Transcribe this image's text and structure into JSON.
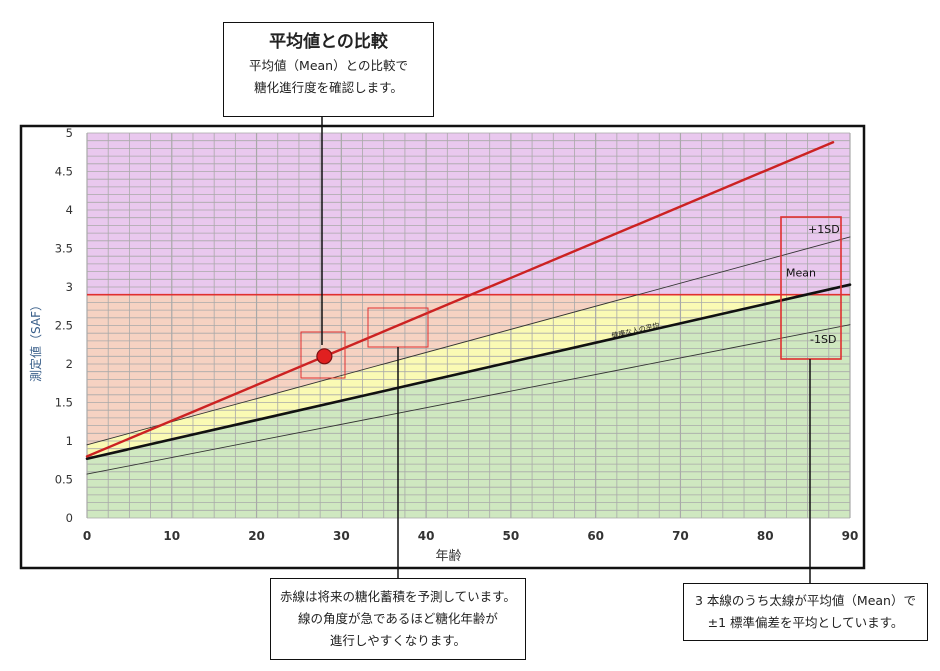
{
  "chart_data": {
    "type": "line",
    "xlabel": "年齢",
    "ylabel": "測定値（SAF）",
    "xlim": [
      0,
      90
    ],
    "ylim": [
      0,
      5
    ],
    "xticks": [
      0,
      10,
      20,
      30,
      40,
      50,
      60,
      70,
      80,
      90
    ],
    "yticks": [
      0,
      0.5,
      1,
      1.5,
      2,
      2.5,
      3,
      3.5,
      4,
      4.5,
      5
    ],
    "xtick_labels": [
      "0",
      "10",
      "20",
      "30",
      "40",
      "50",
      "60",
      "70",
      "80",
      "90"
    ],
    "ytick_labels": [
      "0",
      "0.5",
      "1",
      "1.5",
      "2",
      "2.5",
      "3",
      "3.5",
      "4",
      "4.5",
      "5"
    ],
    "grid": true,
    "threshold": {
      "y": 2.9,
      "color": "#e03030"
    },
    "regions": [
      {
        "from": 2.9,
        "to": 5,
        "color": "#e9c8ee"
      },
      {
        "from": 0,
        "to": 2.9,
        "color": "#cfe8c0"
      }
    ],
    "series": [
      {
        "name": "+1SD",
        "x": [
          0,
          90
        ],
        "y": [
          0.95,
          3.65
        ],
        "color": "#333333",
        "width": 0.9
      },
      {
        "name": "Mean",
        "x": [
          0,
          90
        ],
        "y": [
          0.77,
          3.03
        ],
        "color": "#111111",
        "width": 2.6
      },
      {
        "name": "-1SD",
        "x": [
          0,
          90
        ],
        "y": [
          0.57,
          2.51
        ],
        "color": "#333333",
        "width": 0.9
      },
      {
        "name": "",
        "x": [
          0,
          88
        ],
        "y": [
          0.8,
          4.88
        ],
        "color": "#cc2222",
        "width": 2.4
      }
    ],
    "point": {
      "x": 28,
      "y": 2.1,
      "color": "#e02020"
    },
    "series_labels": [
      "+1SD",
      "Mean",
      "-1SD"
    ],
    "mean_line_annotation": "健康な人の平均"
  },
  "callouts": {
    "top": {
      "title": "平均値との比較",
      "lines": [
        "平均値（Mean）との比較で",
        "糖化進行度を確認します。"
      ]
    },
    "bottom_center": {
      "lines": [
        "赤線は将来の糖化蓄積を予測しています。",
        "線の角度が急であるほど糖化年齢が",
        "進行しやすくなります。"
      ]
    },
    "bottom_right": {
      "lines": [
        "3 本線のうち太線が平均値（Mean）で",
        "±1 標準偏差を平均としています。"
      ]
    }
  },
  "colors": {
    "highlight_box": "#e03030",
    "frame": "#111111",
    "grid": "#a9a9a9",
    "axis_text": "#333333",
    "ylabel_text": "#3a5f8a"
  }
}
